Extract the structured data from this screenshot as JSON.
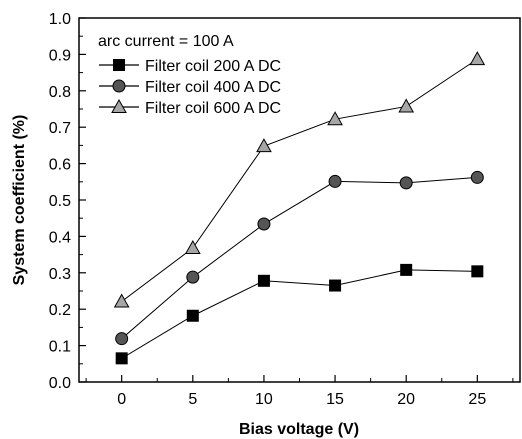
{
  "chart_data": {
    "type": "line",
    "title": "",
    "xlabel": "Bias voltage (V)",
    "ylabel": "System coefficient (%)",
    "xlim": [
      -3,
      28
    ],
    "ylim": [
      0.0,
      1.0
    ],
    "x_ticks": [
      0,
      5,
      10,
      15,
      20,
      25
    ],
    "y_ticks": [
      "0.0",
      "0.1",
      "0.2",
      "0.3",
      "0.4",
      "0.5",
      "0.6",
      "0.7",
      "0.8",
      "0.9",
      "1.0"
    ],
    "x": [
      0,
      5,
      10,
      15,
      20,
      25
    ],
    "grid": false,
    "legend_position": "top-left",
    "annotation": "arc current = 100 A",
    "series": [
      {
        "name": "Filter coil 200 A DC",
        "marker": "square",
        "color": "#000000",
        "values": [
          0.065,
          0.182,
          0.278,
          0.265,
          0.308,
          0.304
        ]
      },
      {
        "name": "Filter coil 400 A DC",
        "marker": "circle",
        "color": "#555555",
        "values": [
          0.119,
          0.288,
          0.434,
          0.551,
          0.547,
          0.562
        ]
      },
      {
        "name": "Filter coil 600 A DC",
        "marker": "triangle",
        "color": "#a6a6a6",
        "values": [
          0.221,
          0.368,
          0.648,
          0.722,
          0.757,
          0.887
        ]
      }
    ]
  }
}
